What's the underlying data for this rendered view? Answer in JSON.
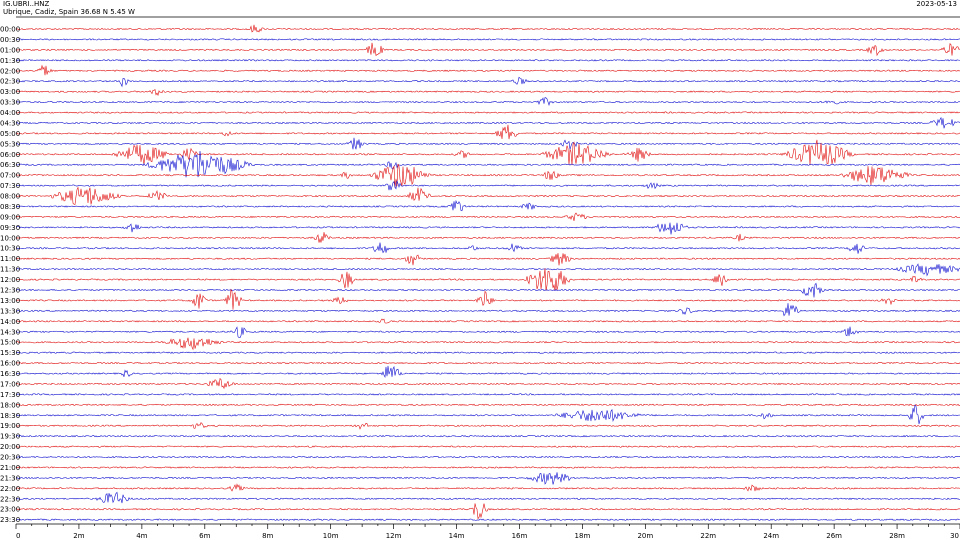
{
  "header": {
    "station": "IG.UBRI..HNZ",
    "location": "Ubrique, Cadiz, Spain  36.68 N 5.45 W",
    "date": "2023-05-13"
  },
  "colors": {
    "red": "#e01010",
    "blue": "#1010d0"
  },
  "chart_data": {
    "type": "line",
    "rows": [
      "00:00",
      "00:30",
      "01:00",
      "01:30",
      "02:00",
      "02:30",
      "03:00",
      "03:30",
      "04:00",
      "04:30",
      "05:00",
      "05:30",
      "06:00",
      "06:30",
      "07:00",
      "07:30",
      "08:00",
      "08:30",
      "09:00",
      "09:30",
      "10:00",
      "10:30",
      "11:00",
      "11:30",
      "12:00",
      "12:30",
      "13:00",
      "13:30",
      "14:00",
      "14:30",
      "15:00",
      "15:30",
      "16:00",
      "16:30",
      "17:00",
      "17:30",
      "18:00",
      "18:30",
      "19:00",
      "19:30",
      "20:00",
      "20:30",
      "21:00",
      "21:30",
      "22:00",
      "22:30",
      "23:00",
      "23:30"
    ],
    "xlim": [
      0,
      30
    ],
    "xticks": [
      0,
      2,
      4,
      6,
      8,
      10,
      12,
      14,
      16,
      18,
      20,
      22,
      24,
      26,
      28,
      30
    ],
    "xtick_labels": [
      "0",
      "2m",
      "4m",
      "6m",
      "8m",
      "10m",
      "12m",
      "14m",
      "16m",
      "18m",
      "20m",
      "22m",
      "24m",
      "26m",
      "28m",
      "30"
    ],
    "events": [
      {
        "row": 0,
        "t": 7.6,
        "a": 0.35,
        "d": 0.3
      },
      {
        "row": 2,
        "t": 11.4,
        "a": 0.9,
        "d": 0.3
      },
      {
        "row": 2,
        "t": 27.3,
        "a": 0.5,
        "d": 0.3
      },
      {
        "row": 2,
        "t": 29.7,
        "a": 0.5,
        "d": 0.4
      },
      {
        "row": 4,
        "t": 0.9,
        "a": 0.5,
        "d": 0.3
      },
      {
        "row": 5,
        "t": 3.4,
        "a": 0.5,
        "d": 0.2
      },
      {
        "row": 5,
        "t": 16.0,
        "a": 0.3,
        "d": 0.3
      },
      {
        "row": 6,
        "t": 4.5,
        "a": 0.3,
        "d": 0.3
      },
      {
        "row": 7,
        "t": 16.8,
        "a": 0.35,
        "d": 0.3
      },
      {
        "row": 7,
        "t": 25.9,
        "a": 0.3,
        "d": 0.3
      },
      {
        "row": 9,
        "t": 29.5,
        "a": 0.5,
        "d": 0.5
      },
      {
        "row": 10,
        "t": 15.6,
        "a": 0.8,
        "d": 0.4
      },
      {
        "row": 10,
        "t": 6.7,
        "a": 0.3,
        "d": 0.2
      },
      {
        "row": 11,
        "t": 10.8,
        "a": 0.6,
        "d": 0.3
      },
      {
        "row": 11,
        "t": 17.6,
        "a": 0.5,
        "d": 0.3
      },
      {
        "row": 12,
        "t": 4.0,
        "a": 0.9,
        "d": 1.0
      },
      {
        "row": 12,
        "t": 5.5,
        "a": 0.6,
        "d": 0.3
      },
      {
        "row": 12,
        "t": 17.8,
        "a": 1.0,
        "d": 1.2
      },
      {
        "row": 12,
        "t": 19.8,
        "a": 0.6,
        "d": 0.4
      },
      {
        "row": 12,
        "t": 25.5,
        "a": 1.2,
        "d": 1.2
      },
      {
        "row": 12,
        "t": 14.2,
        "a": 0.3,
        "d": 0.3
      },
      {
        "row": 13,
        "t": 5.8,
        "a": 1.3,
        "d": 1.8
      },
      {
        "row": 13,
        "t": 12.0,
        "a": 0.4,
        "d": 0.3
      },
      {
        "row": 14,
        "t": 12.2,
        "a": 1.2,
        "d": 1.0
      },
      {
        "row": 14,
        "t": 17.0,
        "a": 0.5,
        "d": 0.3
      },
      {
        "row": 14,
        "t": 27.3,
        "a": 0.9,
        "d": 1.2
      },
      {
        "row": 14,
        "t": 10.5,
        "a": 0.3,
        "d": 0.2
      },
      {
        "row": 15,
        "t": 12.0,
        "a": 0.8,
        "d": 0.3
      },
      {
        "row": 15,
        "t": 20.2,
        "a": 0.3,
        "d": 0.3
      },
      {
        "row": 16,
        "t": 2.2,
        "a": 0.9,
        "d": 1.2
      },
      {
        "row": 16,
        "t": 12.8,
        "a": 0.7,
        "d": 0.4
      },
      {
        "row": 16,
        "t": 4.5,
        "a": 0.4,
        "d": 0.4
      },
      {
        "row": 17,
        "t": 14.0,
        "a": 0.8,
        "d": 0.3
      },
      {
        "row": 17,
        "t": 16.3,
        "a": 0.3,
        "d": 0.3
      },
      {
        "row": 18,
        "t": 17.8,
        "a": 0.35,
        "d": 0.4
      },
      {
        "row": 19,
        "t": 3.7,
        "a": 0.5,
        "d": 0.3
      },
      {
        "row": 19,
        "t": 20.8,
        "a": 0.7,
        "d": 0.6
      },
      {
        "row": 20,
        "t": 9.7,
        "a": 0.6,
        "d": 0.3
      },
      {
        "row": 20,
        "t": 23.0,
        "a": 0.3,
        "d": 0.2
      },
      {
        "row": 21,
        "t": 11.6,
        "a": 0.7,
        "d": 0.3
      },
      {
        "row": 21,
        "t": 15.8,
        "a": 0.4,
        "d": 0.3
      },
      {
        "row": 21,
        "t": 26.7,
        "a": 0.6,
        "d": 0.3
      },
      {
        "row": 21,
        "t": 14.5,
        "a": 0.3,
        "d": 0.2
      },
      {
        "row": 22,
        "t": 12.6,
        "a": 0.6,
        "d": 0.3
      },
      {
        "row": 22,
        "t": 17.3,
        "a": 0.6,
        "d": 0.4
      },
      {
        "row": 23,
        "t": 29.0,
        "a": 0.5,
        "d": 1.2
      },
      {
        "row": 24,
        "t": 10.5,
        "a": 0.8,
        "d": 0.3
      },
      {
        "row": 24,
        "t": 16.9,
        "a": 1.4,
        "d": 0.8
      },
      {
        "row": 24,
        "t": 22.4,
        "a": 0.8,
        "d": 0.3
      },
      {
        "row": 24,
        "t": 28.6,
        "a": 0.4,
        "d": 0.2
      },
      {
        "row": 25,
        "t": 25.3,
        "a": 0.8,
        "d": 0.4
      },
      {
        "row": 26,
        "t": 5.8,
        "a": 0.8,
        "d": 0.3
      },
      {
        "row": 26,
        "t": 6.9,
        "a": 1.1,
        "d": 0.3
      },
      {
        "row": 26,
        "t": 14.9,
        "a": 0.8,
        "d": 0.3
      },
      {
        "row": 26,
        "t": 10.3,
        "a": 0.3,
        "d": 0.3
      },
      {
        "row": 26,
        "t": 27.7,
        "a": 0.4,
        "d": 0.3
      },
      {
        "row": 27,
        "t": 24.6,
        "a": 1.0,
        "d": 0.3
      },
      {
        "row": 27,
        "t": 21.3,
        "a": 0.3,
        "d": 0.3
      },
      {
        "row": 28,
        "t": 11.7,
        "a": 0.35,
        "d": 0.2
      },
      {
        "row": 29,
        "t": 7.1,
        "a": 0.5,
        "d": 0.3
      },
      {
        "row": 29,
        "t": 26.5,
        "a": 0.5,
        "d": 0.3
      },
      {
        "row": 30,
        "t": 5.6,
        "a": 0.6,
        "d": 1.0
      },
      {
        "row": 33,
        "t": 11.9,
        "a": 0.8,
        "d": 0.4
      },
      {
        "row": 33,
        "t": 3.5,
        "a": 0.35,
        "d": 0.2
      },
      {
        "row": 34,
        "t": 6.5,
        "a": 0.5,
        "d": 0.5
      },
      {
        "row": 37,
        "t": 18.5,
        "a": 0.6,
        "d": 1.5
      },
      {
        "row": 37,
        "t": 28.6,
        "a": 1.0,
        "d": 0.3
      },
      {
        "row": 37,
        "t": 23.8,
        "a": 0.3,
        "d": 0.3
      },
      {
        "row": 38,
        "t": 5.8,
        "a": 0.3,
        "d": 0.3
      },
      {
        "row": 38,
        "t": 11.0,
        "a": 0.3,
        "d": 0.3
      },
      {
        "row": 43,
        "t": 17.0,
        "a": 0.6,
        "d": 0.8
      },
      {
        "row": 44,
        "t": 7.0,
        "a": 0.3,
        "d": 0.3
      },
      {
        "row": 44,
        "t": 23.4,
        "a": 0.3,
        "d": 0.3
      },
      {
        "row": 45,
        "t": 3.1,
        "a": 0.6,
        "d": 0.6
      },
      {
        "row": 46,
        "t": 14.7,
        "a": 1.0,
        "d": 0.3
      }
    ]
  }
}
